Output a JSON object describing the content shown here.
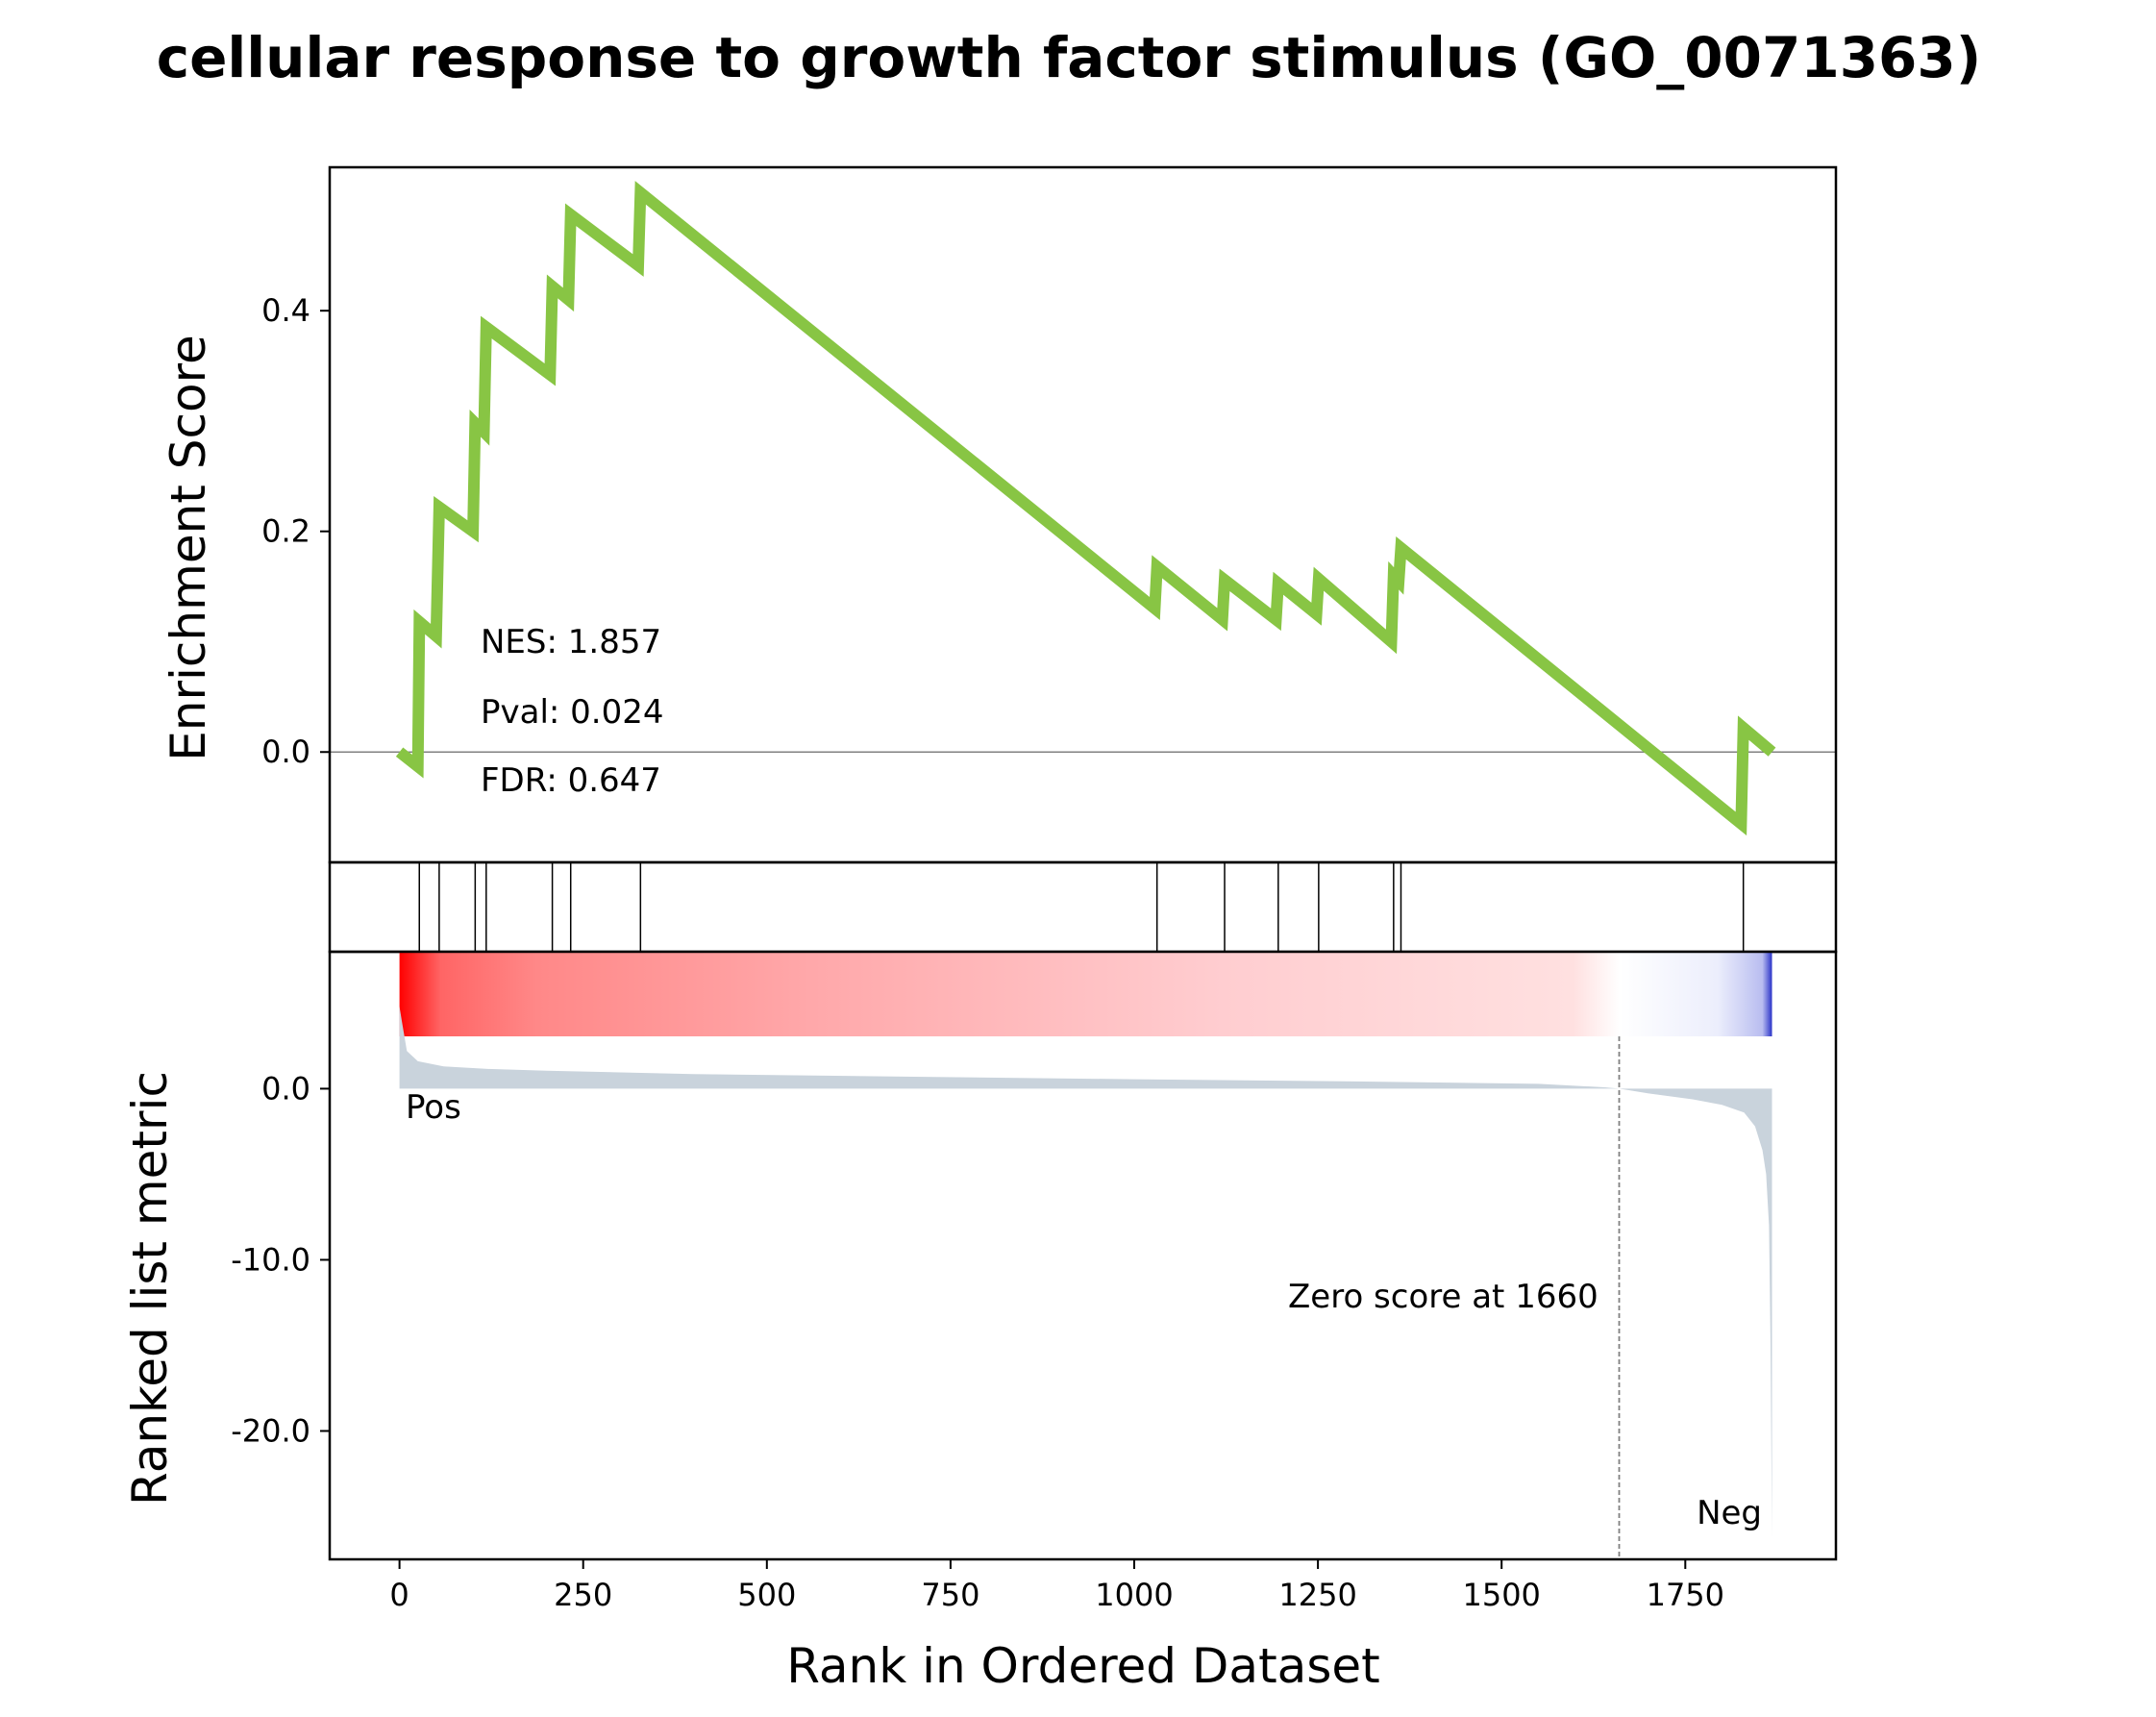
{
  "title": "cellular response to growth factor stimulus (GO_0071363)",
  "stats": {
    "nes": "NES: 1.857",
    "pval": "Pval: 0.024",
    "fdr": "FDR: 0.647"
  },
  "colors": {
    "es_line": "#88c544",
    "metric_fill": "#c9d3dc",
    "pos": "#ff0000",
    "neg": "#0000ff",
    "zero_line": "#808080"
  },
  "chart_data": [
    {
      "type": "line",
      "panel": "enrichment-score",
      "ylabel": "Enrichment Score",
      "ylim": [
        -0.1,
        0.53
      ],
      "yticks": [
        0.0,
        0.2,
        0.4
      ],
      "ytick_labels": [
        "0.0",
        "0.2",
        "0.4"
      ],
      "x": [
        0,
        25,
        27,
        50,
        54,
        100,
        103,
        115,
        118,
        205,
        208,
        230,
        233,
        325,
        328,
        1028,
        1031,
        1120,
        1123,
        1193,
        1196,
        1248,
        1251,
        1350,
        1353,
        1360,
        1363,
        1826,
        1829,
        1868
      ],
      "y": [
        0.0,
        -0.013,
        0.118,
        0.105,
        0.222,
        0.2,
        0.298,
        0.29,
        0.385,
        0.342,
        0.422,
        0.41,
        0.487,
        0.441,
        0.507,
        0.13,
        0.168,
        0.12,
        0.156,
        0.12,
        0.153,
        0.125,
        0.157,
        0.1,
        0.16,
        0.155,
        0.185,
        -0.065,
        0.022,
        0.0
      ]
    },
    {
      "type": "hits",
      "panel": "gene-set-hits",
      "positions": [
        27,
        54,
        103,
        118,
        208,
        233,
        328,
        1031,
        1123,
        1196,
        1251,
        1353,
        1363,
        1829
      ]
    },
    {
      "type": "area",
      "panel": "ranked-list-metric",
      "ylabel": "Ranked list metric",
      "xlabel": "Rank in Ordered Dataset",
      "xlim": [
        -95,
        1955
      ],
      "ylim": [
        -27.5,
        8.0
      ],
      "yticks": [
        0.0,
        -10.0,
        -20.0
      ],
      "ytick_labels": [
        "0.0",
        "-10.0",
        "-20.0"
      ],
      "xticks": [
        0,
        250,
        500,
        750,
        1000,
        1250,
        1500,
        1750
      ],
      "xtick_labels": [
        "0",
        "250",
        "500",
        "750",
        "1000",
        "1250",
        "1500",
        "1750"
      ],
      "n_genes": 1868,
      "zero_cross": 1660,
      "zero_label": "Zero score at 1660",
      "pos_label": "Pos",
      "neg_label": "Neg",
      "x": [
        0,
        3,
        10,
        25,
        60,
        120,
        200,
        400,
        700,
        1000,
        1300,
        1550,
        1640,
        1660,
        1700,
        1760,
        1800,
        1830,
        1845,
        1855,
        1860,
        1864,
        1866,
        1868
      ],
      "y": [
        4.8,
        4.0,
        2.2,
        1.6,
        1.3,
        1.15,
        1.05,
        0.85,
        0.7,
        0.55,
        0.42,
        0.28,
        0.08,
        0.0,
        -0.28,
        -0.62,
        -0.95,
        -1.4,
        -2.2,
        -3.6,
        -5.0,
        -8.0,
        -15.0,
        -26.2
      ]
    }
  ]
}
